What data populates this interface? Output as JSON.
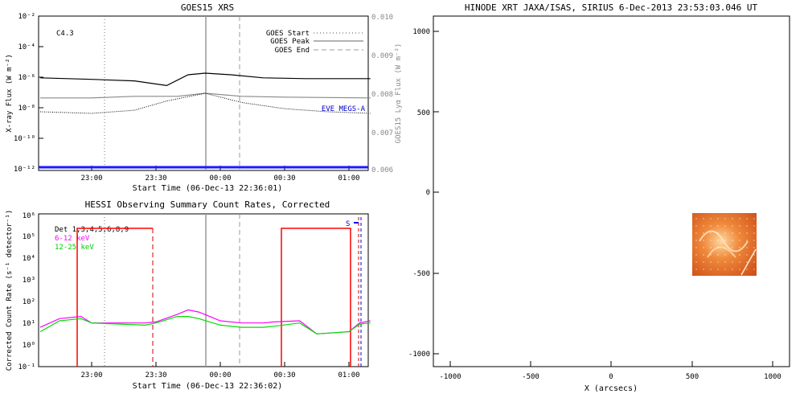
{
  "chart_data": [
    {
      "type": "line",
      "title": "GOES15 XRS",
      "xlabel": "Start Time (06-Dec-13 22:36:01)",
      "ylabel": "X-ray Flux (W m⁻²)",
      "y2label": "GOES15 Lyα Flux (W m⁻²)",
      "x_ticks": [
        "23:00",
        "23:30",
        "00:00",
        "00:30",
        "01:00"
      ],
      "y_ticks": [
        "10⁻²",
        "10⁻⁴",
        "10⁻⁶",
        "10⁻⁸",
        "10⁻¹⁰",
        "10⁻¹²"
      ],
      "y2_ticks": [
        "0.010",
        "0.009",
        "0.008",
        "0.007",
        "0.006"
      ],
      "annotation": "C4.3",
      "legend": [
        "GOES Start",
        "GOES Peak",
        "GOES End"
      ],
      "label_lyman": "EVE MEGS-A",
      "markers": {
        "start": "23:03",
        "peak": "23:53",
        "end": "00:10"
      },
      "series": [
        {
          "x": [
            "22:36",
            "23:00",
            "23:20",
            "23:35",
            "23:45",
            "23:53",
            "00:05",
            "00:20",
            "00:40",
            "01:10"
          ],
          "values": [
            6.0,
            6.1,
            6.2,
            6.5,
            5.8,
            5.7,
            5.8,
            6.0,
            6.05,
            6.05
          ]
        },
        {
          "x": [
            "22:36",
            "23:00",
            "23:20",
            "23:40",
            "23:53",
            "00:10",
            "00:30",
            "01:10"
          ],
          "values": [
            7.3,
            7.3,
            7.2,
            7.2,
            7.0,
            7.2,
            7.25,
            7.3
          ]
        },
        {
          "x": [
            "22:36",
            "23:00",
            "23:20",
            "23:35",
            "23:53",
            "00:10",
            "00:30",
            "00:50",
            "01:10"
          ],
          "values": [
            8.2,
            8.3,
            8.1,
            7.5,
            7.0,
            7.6,
            8.0,
            8.2,
            8.3
          ]
        }
      ]
    },
    {
      "type": "line",
      "title": "HESSI Observing Summary Count Rates, Corrected",
      "xlabel": "Start Time (06-Dec-13 22:36:02)",
      "ylabel": "Corrected Count Rate (s⁻¹ detector⁻¹)",
      "x_ticks": [
        "23:00",
        "23:30",
        "00:00",
        "00:30",
        "01:00"
      ],
      "y_ticks": [
        "10⁶",
        "10⁵",
        "10⁴",
        "10³",
        "10²",
        "10¹",
        "10⁰",
        "10⁻¹"
      ],
      "legend": [
        {
          "name": "Det 1,3,4,5,6,8,9",
          "color": "#000000"
        },
        {
          "name": "6-12 keV",
          "color": "#ff00ff"
        },
        {
          "name": "12-25 keV",
          "color": "#00dd00"
        }
      ],
      "label_s": "S",
      "series": [
        {
          "name": "6-12 keV",
          "x": [
            "22:36",
            "22:45",
            "22:55",
            "23:00",
            "23:25",
            "23:30",
            "23:40",
            "23:45",
            "23:50",
            "00:00",
            "00:10",
            "00:20",
            "00:25",
            "00:37",
            "00:45",
            "01:00",
            "01:05",
            "01:10"
          ],
          "values": [
            0.8,
            1.2,
            1.3,
            1.0,
            1.0,
            1.05,
            1.4,
            1.6,
            1.5,
            1.1,
            1.0,
            1.0,
            1.05,
            1.1,
            0.5,
            0.6,
            1.0,
            1.1
          ]
        },
        {
          "name": "12-25 keV",
          "x": [
            "22:36",
            "22:45",
            "22:55",
            "23:00",
            "23:25",
            "23:30",
            "23:40",
            "23:45",
            "23:50",
            "00:00",
            "00:10",
            "00:20",
            "00:25",
            "00:37",
            "00:45",
            "01:00",
            "01:05",
            "01:10"
          ],
          "values": [
            0.6,
            1.1,
            1.2,
            1.0,
            0.9,
            1.0,
            1.3,
            1.3,
            1.2,
            0.9,
            0.8,
            0.8,
            0.85,
            1.0,
            0.5,
            0.6,
            0.95,
            1.0
          ]
        }
      ]
    },
    {
      "type": "heatmap",
      "title": "HINODE XRT JAXA/ISAS, SIRIUS  6-Dec-2013 23:53:03.046 UT",
      "xlabel": "X (arcsecs)",
      "ylabel": "",
      "xlim": [
        -1100,
        1100
      ],
      "ylim": [
        -1100,
        1100
      ],
      "x_ticks": [
        "-1000",
        "-500",
        "0",
        "500",
        "1000"
      ],
      "y_ticks": [
        "1000",
        "500",
        "0",
        "-500",
        "-1000"
      ],
      "image_extent": {
        "x": [
          500,
          900
        ],
        "y": [
          -520,
          -130
        ]
      }
    }
  ]
}
